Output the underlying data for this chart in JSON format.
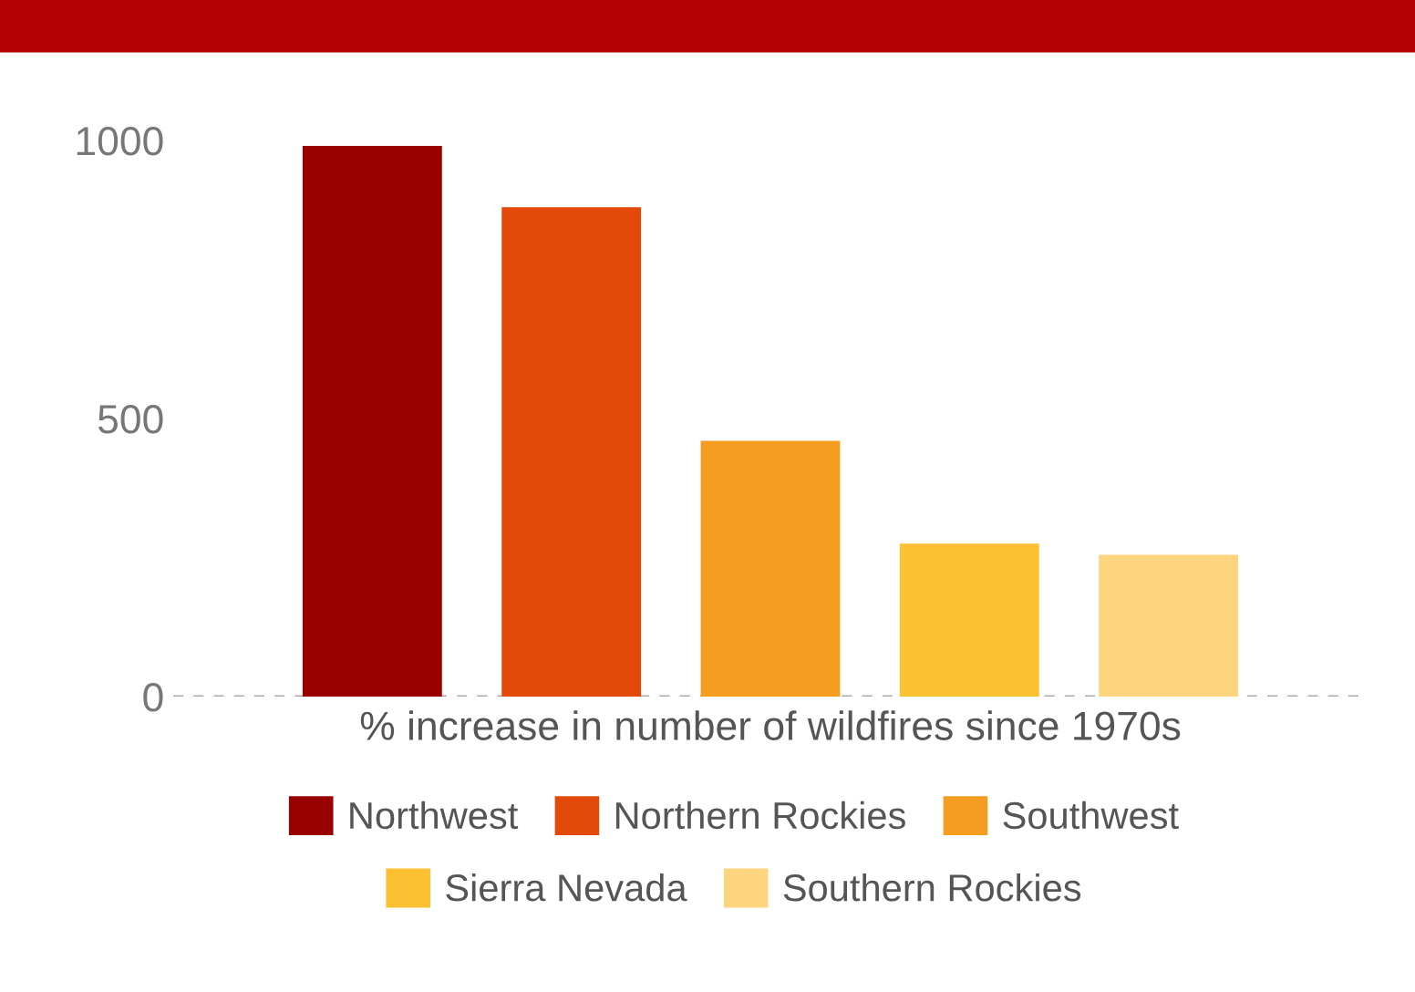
{
  "chart_data": {
    "type": "bar",
    "xlabel": "% increase in number of wildfires since 1970s",
    "categories": [
      null,
      null,
      null,
      null,
      null
    ],
    "series": [
      {
        "name": "Northwest",
        "color": "#990000",
        "values": [
          990,
          null,
          null,
          null,
          null
        ]
      },
      {
        "name": "Northern Rockies",
        "color": "#e34a0a",
        "values": [
          null,
          880,
          null,
          null,
          null
        ]
      },
      {
        "name": "Southwest",
        "color": "#f59d20",
        "values": [
          null,
          null,
          460,
          null,
          null
        ]
      },
      {
        "name": "Sierra Nevada",
        "color": "#fcc033",
        "values": [
          null,
          null,
          null,
          275,
          null
        ]
      },
      {
        "name": "Southern Rockies",
        "color": "#fdd57e",
        "values": [
          null,
          null,
          null,
          null,
          255
        ]
      }
    ],
    "ylim": [
      0,
      1000
    ],
    "yticks": [
      0,
      500,
      1000
    ],
    "grid": false,
    "legend": "bottom",
    "ref_lines": [
      {
        "axis": "y",
        "value": 0,
        "color": "#aaaaaa",
        "line_style": "dashed"
      }
    ]
  }
}
